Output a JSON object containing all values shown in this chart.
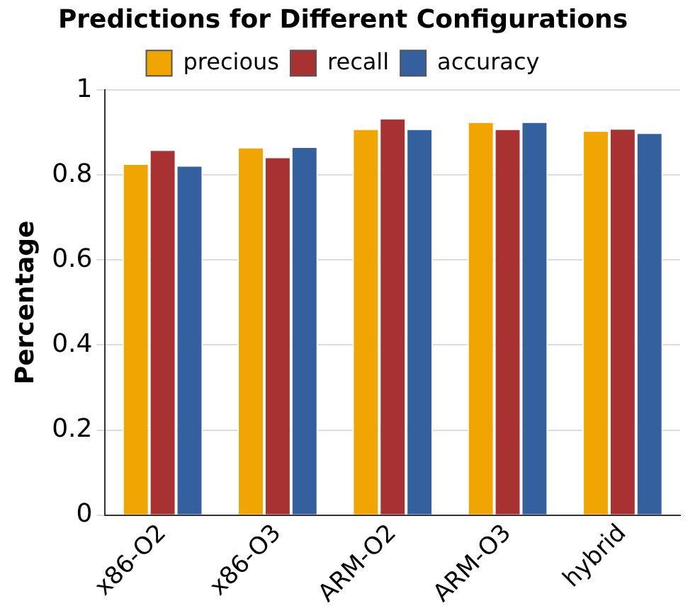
{
  "chart_data": {
    "type": "bar",
    "title": "Predictions for Different Configurations",
    "ylabel": "Percentage",
    "categories": [
      "x86-O2",
      "x86-O3",
      "ARM-O2",
      "ARM-O3",
      "hybrid"
    ],
    "series": [
      {
        "name": "precious",
        "color": "#f0a500",
        "values": [
          0.827,
          0.866,
          0.909,
          0.926,
          0.905
        ]
      },
      {
        "name": "recall",
        "color": "#a83232",
        "values": [
          0.86,
          0.843,
          0.934,
          0.909,
          0.91
        ]
      },
      {
        "name": "accuracy",
        "color": "#3460a0",
        "values": [
          0.823,
          0.867,
          0.909,
          0.926,
          0.9
        ]
      }
    ],
    "ylim": [
      0,
      1
    ],
    "yticks": [
      0,
      0.2,
      0.4,
      0.6,
      0.8,
      1
    ],
    "grid": "y",
    "legend": "top"
  }
}
